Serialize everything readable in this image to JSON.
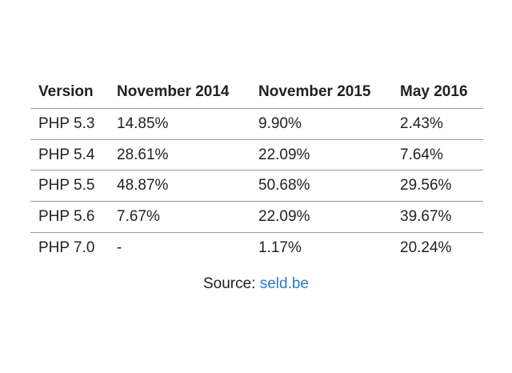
{
  "table": {
    "header": [
      "Version",
      "November 2014",
      "November 2015",
      "May 2016"
    ],
    "rows": [
      [
        "PHP 5.3",
        "14.85%",
        "9.90%",
        "2.43%"
      ],
      [
        "PHP 5.4",
        "28.61%",
        "22.09%",
        "7.64%"
      ],
      [
        "PHP 5.5",
        "48.87%",
        "50.68%",
        "29.56%"
      ],
      [
        "PHP 5.6",
        "7.67%",
        "22.09%",
        "39.67%"
      ],
      [
        "PHP 7.0",
        "-",
        "1.17%",
        "20.24%"
      ]
    ]
  },
  "source": {
    "label": "Source:",
    "link": "seld.be"
  }
}
